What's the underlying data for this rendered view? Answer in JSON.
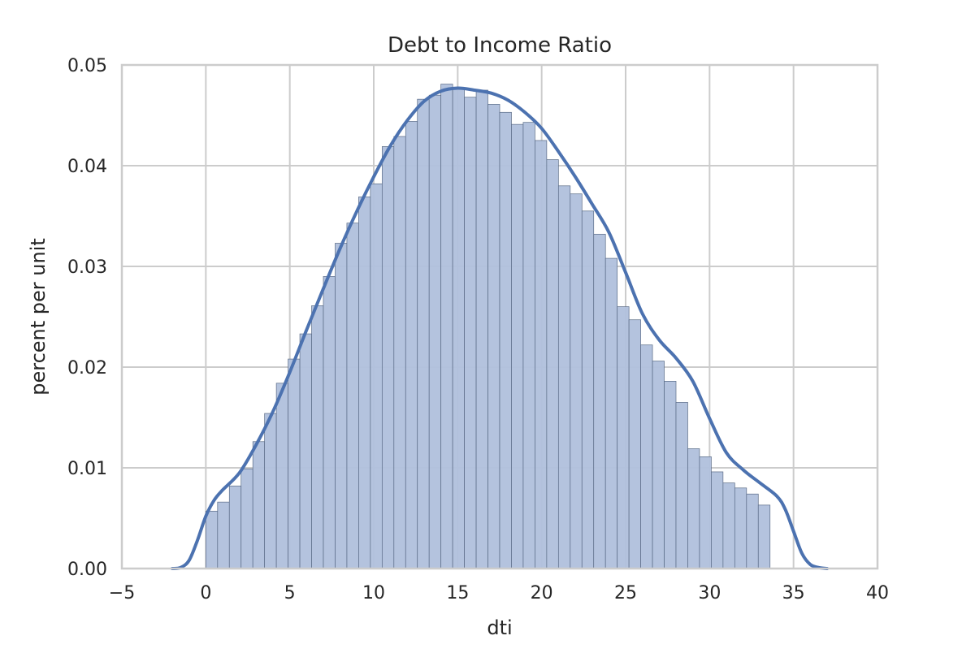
{
  "chart_data": {
    "type": "bar",
    "subtype": "histogram-with-kde",
    "title": "Debt to Income Ratio",
    "xlabel": "dti",
    "ylabel": "percent per unit",
    "xlim": [
      -5,
      40
    ],
    "ylim": [
      0,
      0.05
    ],
    "xticks": [
      -5,
      0,
      5,
      10,
      15,
      20,
      25,
      30,
      35,
      40
    ],
    "xtick_labels": [
      "−5",
      "0",
      "5",
      "10",
      "15",
      "20",
      "25",
      "30",
      "35",
      "40"
    ],
    "yticks": [
      0,
      0.01,
      0.02,
      0.03,
      0.04,
      0.05
    ],
    "ytick_labels": [
      "0.00",
      "0.01",
      "0.02",
      "0.03",
      "0.04",
      "0.05"
    ],
    "grid": true,
    "colors": {
      "bar_fill": "#b0c0dc",
      "bar_edge": "#5a6b86",
      "kde_line": "#4c72b0",
      "grid": "#cccccc",
      "axes_edge": "#cccccc",
      "text": "#262626"
    },
    "histogram": {
      "bin_edges_start": 0,
      "bin_width": 0.7,
      "values": [
        0.0057,
        0.0066,
        0.0082,
        0.0099,
        0.0126,
        0.0154,
        0.0184,
        0.0208,
        0.0233,
        0.0261,
        0.029,
        0.0323,
        0.0343,
        0.0369,
        0.0382,
        0.0419,
        0.0429,
        0.0444,
        0.0466,
        0.047,
        0.0481,
        0.0476,
        0.0468,
        0.0475,
        0.0461,
        0.0453,
        0.0441,
        0.0443,
        0.0425,
        0.0406,
        0.038,
        0.0372,
        0.0355,
        0.0332,
        0.0308,
        0.026,
        0.0247,
        0.0222,
        0.0206,
        0.0186,
        0.0165,
        0.0119,
        0.0111,
        0.0096,
        0.0085,
        0.008,
        0.0074,
        0.0063
      ]
    },
    "series": [
      {
        "kind": "kde",
        "x": [
          -2.0,
          -1.5,
          -1.0,
          -0.5,
          0.0,
          0.5,
          1.0,
          2.0,
          3.0,
          4.0,
          5.0,
          6.0,
          7.0,
          8.0,
          9.0,
          10.0,
          11.0,
          12.0,
          13.0,
          14.0,
          15.0,
          16.0,
          17.0,
          18.0,
          19.0,
          20.0,
          21.0,
          22.0,
          23.0,
          24.0,
          25.0,
          26.0,
          27.0,
          28.0,
          29.0,
          30.0,
          31.0,
          32.0,
          33.0,
          34.0,
          34.5,
          35.0,
          35.5,
          36.0,
          36.5,
          37.0
        ],
        "y": [
          0.0,
          0.0001,
          0.0008,
          0.0028,
          0.0052,
          0.0068,
          0.0078,
          0.0095,
          0.0123,
          0.0156,
          0.0195,
          0.0237,
          0.0278,
          0.0318,
          0.0355,
          0.0389,
          0.042,
          0.0445,
          0.0464,
          0.0474,
          0.0477,
          0.0475,
          0.0472,
          0.0465,
          0.0453,
          0.0437,
          0.0414,
          0.0389,
          0.0362,
          0.0334,
          0.0294,
          0.0253,
          0.0227,
          0.0209,
          0.0186,
          0.0149,
          0.0115,
          0.0098,
          0.0085,
          0.0072,
          0.0059,
          0.0037,
          0.0015,
          0.0004,
          0.0001,
          0.0
        ]
      }
    ]
  }
}
